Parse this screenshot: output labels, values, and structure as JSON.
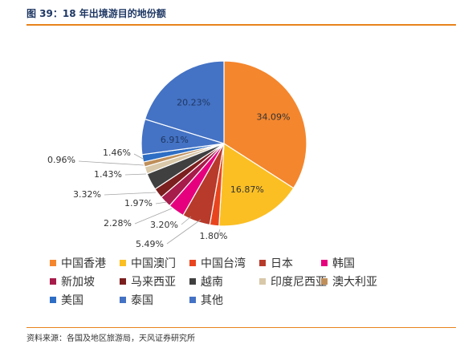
{
  "figure_title": "图 39：18 年出境游目的地份额",
  "source": "资料来源：各国及地区旅游局，天风证券研究所",
  "chart_data": {
    "type": "pie",
    "slices": [
      {
        "label": "中国香港",
        "value": 34.09,
        "value_label": "34.09%",
        "color": "#f4862d"
      },
      {
        "label": "中国澳门",
        "value": 16.87,
        "value_label": "16.87%",
        "color": "#fbbf24"
      },
      {
        "label": "中国台湾",
        "value": 1.8,
        "value_label": "1.80%",
        "color": "#e8451e"
      },
      {
        "label": "日本",
        "value": 5.49,
        "value_label": "5.49%",
        "color": "#b83a2b"
      },
      {
        "label": "韩国",
        "value": 3.2,
        "value_label": "3.20%",
        "color": "#e6007e"
      },
      {
        "label": "新加坡",
        "value": 2.28,
        "value_label": "2.28%",
        "color": "#a61c4a"
      },
      {
        "label": "马来西亚",
        "value": 1.97,
        "value_label": "1.97%",
        "color": "#7b1f1f"
      },
      {
        "label": "越南",
        "value": 3.32,
        "value_label": "3.32%",
        "color": "#404040"
      },
      {
        "label": "印度尼西亚",
        "value": 1.43,
        "value_label": "1.43%",
        "color": "#d9c8a9"
      },
      {
        "label": "澳大利亚",
        "value": 0.96,
        "value_label": "0.96%",
        "color": "#bf8f5a"
      },
      {
        "label": "美国",
        "value": 1.46,
        "value_label": "1.46%",
        "color": "#2e6ec4"
      },
      {
        "label": "泰国",
        "value": 6.91,
        "value_label": "6.91%",
        "color": "#4472c4"
      },
      {
        "label": "其他",
        "value": 20.23,
        "value_label": "20.23%",
        "color": "#4472c4"
      }
    ]
  }
}
